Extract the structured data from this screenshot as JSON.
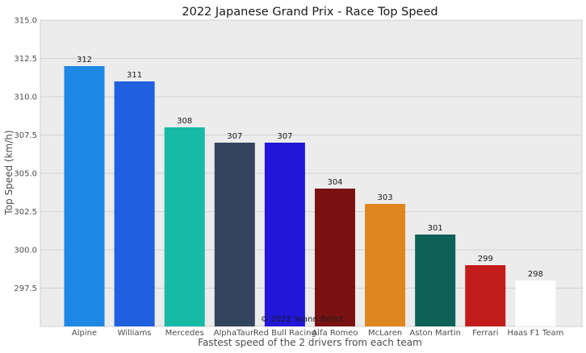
{
  "chart_data": {
    "type": "bar",
    "title": "2022 Japanese Grand Prix - Race Top Speed",
    "xlabel": "Fastest speed of the 2 drivers from each team",
    "ylabel": "Top Speed (km/h)",
    "ylim": [
      295.0,
      315.0
    ],
    "yticks": [
      "297.5",
      "300.0",
      "302.5",
      "305.0",
      "307.5",
      "310.0",
      "312.5",
      "315.0"
    ],
    "grid": true,
    "categories": [
      "Alpine",
      "Williams",
      "Mercedes",
      "AlphaTauri",
      "Red Bull Racing",
      "Alfa Romeo",
      "McLaren",
      "Aston Martin",
      "Ferrari",
      "Haas F1 Team"
    ],
    "values": [
      312,
      311,
      308,
      307,
      307,
      304,
      303,
      301,
      299,
      298
    ],
    "value_labels": [
      "312",
      "311",
      "308",
      "307",
      "307",
      "304",
      "303",
      "301",
      "299",
      "298"
    ],
    "colors": [
      "#1e88e5",
      "#1f5fe0",
      "#17b9a7",
      "#33445e",
      "#2216d8",
      "#7b1212",
      "#e0861e",
      "#0d6157",
      "#c21b1b",
      "#ffffff"
    ],
    "watermark": "© 2022 Yoann Bellot"
  }
}
